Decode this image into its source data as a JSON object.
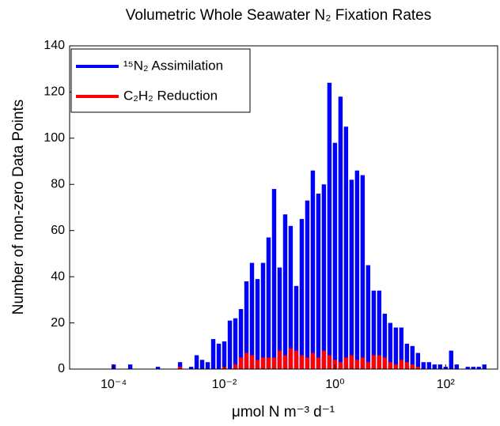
{
  "chart_data": {
    "type": "histogram",
    "title": "Volumetric Whole Seawater N₂ Fixation Rates",
    "xlabel": "μmol N m⁻³ d⁻¹",
    "ylabel": "Number of non-zero Data Points",
    "xscale": "log",
    "bins": [
      8.913e-05,
      0.0001122,
      0.0001413,
      0.0001778,
      0.0002239,
      0.0002818,
      0.0003548,
      0.0004467,
      0.0005623,
      0.0007079,
      0.0008913,
      0.001122,
      0.001413,
      0.001778,
      0.002239,
      0.002818,
      0.003548,
      0.004467,
      0.005623,
      0.007079,
      0.008913,
      0.01122,
      0.01413,
      0.01778,
      0.02239,
      0.02818,
      0.03548,
      0.04467,
      0.05623,
      0.07079,
      0.08913,
      0.1122,
      0.1413,
      0.1778,
      0.2239,
      0.2818,
      0.3548,
      0.4467,
      0.5623,
      0.7079,
      0.8913,
      1.122,
      1.413,
      1.778,
      2.239,
      2.818,
      3.548,
      4.467,
      5.623,
      7.079,
      8.913,
      11.22,
      14.13,
      17.78,
      22.39,
      28.18,
      35.48,
      44.67,
      56.23,
      70.79,
      89.13,
      112.2,
      141.3,
      177.8,
      223.9,
      281.8,
      354.8,
      446.7,
      562.3
    ],
    "series": [
      {
        "name": "¹⁵N₂ Assimilation",
        "color": "#0000ff",
        "values": [
          2,
          0,
          0,
          2,
          0,
          0,
          0,
          0,
          1,
          0,
          0,
          0,
          3,
          0,
          1,
          6,
          4,
          3,
          13,
          11,
          12,
          21,
          22,
          26,
          38,
          46,
          39,
          46,
          57,
          78,
          44,
          67,
          62,
          36,
          65,
          73,
          86,
          76,
          80,
          124,
          98,
          118,
          105,
          82,
          86,
          84,
          45,
          34,
          34,
          24,
          20,
          18,
          18,
          11,
          10,
          7,
          3,
          3,
          2,
          2,
          1,
          8,
          2,
          0,
          1,
          1,
          1,
          2
        ]
      },
      {
        "name": "C₂H₂ Reduction",
        "color": "#ff0000",
        "values": [
          0,
          0,
          0,
          0,
          0,
          0,
          0,
          0,
          0,
          0,
          0,
          0,
          1,
          0,
          0,
          0,
          0,
          0,
          0,
          0,
          1,
          0,
          2,
          5,
          7,
          6,
          4,
          5,
          5,
          5,
          8,
          6,
          9,
          8,
          6,
          5,
          7,
          5,
          8,
          6,
          4,
          3,
          5,
          6,
          4,
          5,
          3,
          6,
          6,
          5,
          3,
          2,
          4,
          3,
          2,
          1,
          0,
          0,
          0,
          0,
          0,
          0,
          0,
          0,
          0,
          0,
          0,
          0
        ]
      }
    ],
    "xlim": [
      1.6e-05,
      900
    ],
    "xticks": [
      {
        "value": 0.0001,
        "label": "10⁻⁴"
      },
      {
        "value": 0.01,
        "label": "10⁻²"
      },
      {
        "value": 1,
        "label": "10⁰"
      },
      {
        "value": 100,
        "label": "10²"
      }
    ],
    "ylim": [
      0,
      140
    ],
    "yticks": [
      0,
      20,
      40,
      60,
      80,
      100,
      120,
      140
    ],
    "legend": "upper-left"
  }
}
